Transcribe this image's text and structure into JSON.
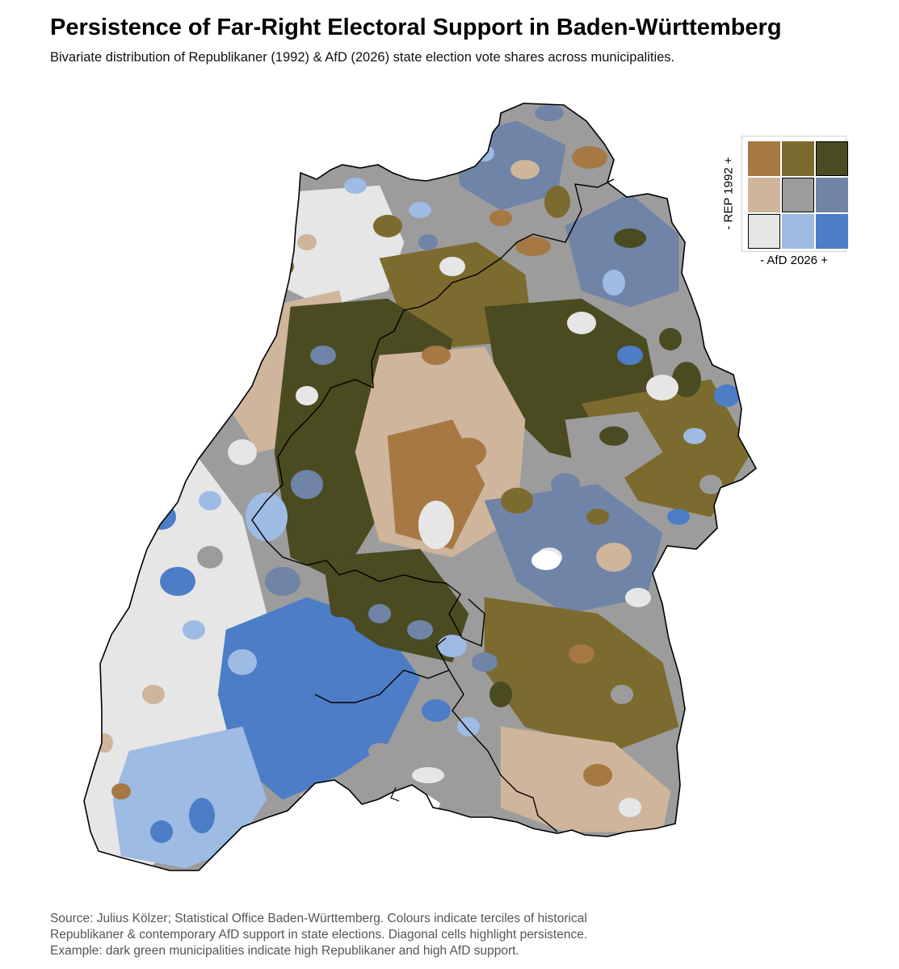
{
  "title": "Persistence of Far-Right Electoral Support in Baden-Württemberg",
  "subtitle": "Bivariate distribution of Republikaner (1992) & AfD (2026) state election vote shares across municipalities.",
  "legend": {
    "y_label": "- REP 1992 +",
    "x_label": "- AfD 2026 +",
    "rows": [
      [
        {
          "rep": "high",
          "afd": "low",
          "color": "#a67843",
          "diagonal": false
        },
        {
          "rep": "high",
          "afd": "mid",
          "color": "#7c6b2e",
          "diagonal": false
        },
        {
          "rep": "high",
          "afd": "high",
          "color": "#4b4b22",
          "diagonal": true
        }
      ],
      [
        {
          "rep": "mid",
          "afd": "low",
          "color": "#cfb59b",
          "diagonal": false
        },
        {
          "rep": "mid",
          "afd": "mid",
          "color": "#9c9c9c",
          "diagonal": true
        },
        {
          "rep": "mid",
          "afd": "high",
          "color": "#6f84a6",
          "diagonal": false
        }
      ],
      [
        {
          "rep": "low",
          "afd": "low",
          "color": "#e6e6e6",
          "diagonal": true
        },
        {
          "rep": "low",
          "afd": "mid",
          "color": "#9ebbe4",
          "diagonal": false
        },
        {
          "rep": "low",
          "afd": "high",
          "color": "#4d7dc6",
          "diagonal": false
        }
      ]
    ]
  },
  "caption": {
    "line1": "Source: Julius Kölzer; Statistical Office Baden-Württemberg. Colours indicate terciles of historical",
    "line2": " Republikaner & contemporary AfD support in state elections. Diagonal cells highlight persistence.",
    "line3": " Example: dark green municipalities indicate high Republikaner and high AfD support."
  },
  "map": {
    "region": "Baden-Württemberg",
    "unit": "municipalities",
    "colors": {
      "high_high": "#4b4b22",
      "high_mid": "#7c6b2e",
      "high_low": "#a67843",
      "mid_high": "#6f84a6",
      "mid_mid": "#9c9c9c",
      "mid_low": "#cfb59b",
      "low_high": "#4d7dc6",
      "low_mid": "#9ebbe4",
      "low_low": "#e6e6e6",
      "border": "#000000"
    }
  }
}
